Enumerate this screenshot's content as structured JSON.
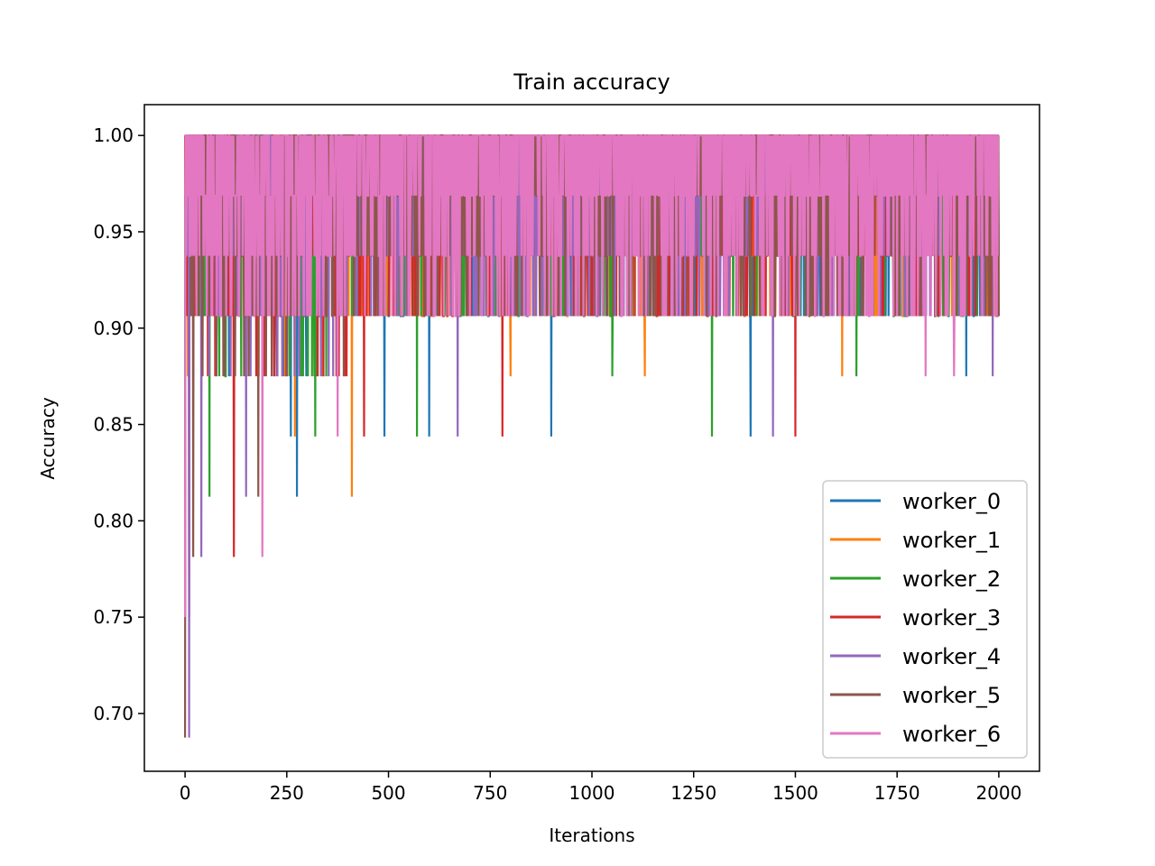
{
  "chart_data": {
    "type": "line",
    "title": "Train accuracy",
    "xlabel": "Iterations",
    "ylabel": "Accuracy",
    "xlim": [
      -100,
      2100
    ],
    "ylim": [
      0.67,
      1.016
    ],
    "xticks": [
      0,
      250,
      500,
      750,
      1000,
      1250,
      1500,
      1750,
      2000
    ],
    "xtick_labels": [
      "0",
      "250",
      "500",
      "750",
      "1000",
      "1250",
      "1500",
      "1750",
      "2000"
    ],
    "yticks": [
      0.7,
      0.75,
      0.8,
      0.85,
      0.9,
      0.95,
      1.0
    ],
    "ytick_labels": [
      "0.70",
      "0.75",
      "0.80",
      "0.85",
      "0.90",
      "0.95",
      "1.00"
    ],
    "grid": false,
    "legend_position": "lower-right",
    "x_range": [
      0,
      2000
    ],
    "series": [
      {
        "name": "worker_0",
        "color": "#1f77b4",
        "levels": [
          0.8125,
          0.84375,
          0.875,
          0.90625,
          0.9375,
          0.96875,
          1.0
        ],
        "spikes": [
          [
            0,
            0.8125
          ],
          [
            260,
            0.84375
          ],
          [
            275,
            0.8125
          ],
          [
            490,
            0.84375
          ],
          [
            600,
            0.84375
          ],
          [
            900,
            0.84375
          ],
          [
            1390,
            0.84375
          ],
          [
            1920,
            0.875
          ]
        ]
      },
      {
        "name": "worker_1",
        "color": "#ff7f0e",
        "levels": [
          0.8125,
          0.84375,
          0.875,
          0.90625,
          0.9375,
          0.96875,
          1.0
        ],
        "spikes": [
          [
            0,
            0.75
          ],
          [
            270,
            0.84375
          ],
          [
            410,
            0.8125
          ],
          [
            800,
            0.875
          ],
          [
            1130,
            0.875
          ],
          [
            1615,
            0.875
          ]
        ]
      },
      {
        "name": "worker_2",
        "color": "#2ca02c",
        "levels": [
          0.84375,
          0.875,
          0.90625,
          0.9375,
          0.96875,
          1.0
        ],
        "spikes": [
          [
            0,
            0.8125
          ],
          [
            60,
            0.8125
          ],
          [
            320,
            0.84375
          ],
          [
            570,
            0.84375
          ],
          [
            1050,
            0.875
          ],
          [
            1295,
            0.84375
          ],
          [
            1650,
            0.875
          ]
        ]
      },
      {
        "name": "worker_3",
        "color": "#d62728",
        "levels": [
          0.78125,
          0.84375,
          0.875,
          0.90625,
          0.9375,
          0.96875,
          1.0
        ],
        "spikes": [
          [
            10,
            0.75
          ],
          [
            120,
            0.78125
          ],
          [
            440,
            0.84375
          ],
          [
            780,
            0.84375
          ],
          [
            1500,
            0.84375
          ]
        ]
      },
      {
        "name": "worker_4",
        "color": "#9467bd",
        "levels": [
          0.84375,
          0.875,
          0.90625,
          0.9375,
          0.96875,
          1.0
        ],
        "spikes": [
          [
            10,
            0.6875
          ],
          [
            40,
            0.78125
          ],
          [
            150,
            0.8125
          ],
          [
            670,
            0.84375
          ],
          [
            1445,
            0.84375
          ],
          [
            1985,
            0.875
          ]
        ]
      },
      {
        "name": "worker_5",
        "color": "#8c564b",
        "levels": [
          0.875,
          0.90625,
          0.9375,
          0.96875,
          1.0
        ],
        "spikes": [
          [
            0,
            0.6875
          ],
          [
            20,
            0.78125
          ],
          [
            180,
            0.8125
          ],
          [
            2000,
            0.90625
          ]
        ]
      },
      {
        "name": "worker_6",
        "color": "#e377c2",
        "levels": [
          0.90625,
          0.9375,
          0.96875,
          1.0
        ],
        "spikes": [
          [
            0,
            0.75
          ],
          [
            190,
            0.78125
          ],
          [
            375,
            0.84375
          ],
          [
            1820,
            0.875
          ],
          [
            1890,
            0.875
          ]
        ]
      }
    ]
  }
}
